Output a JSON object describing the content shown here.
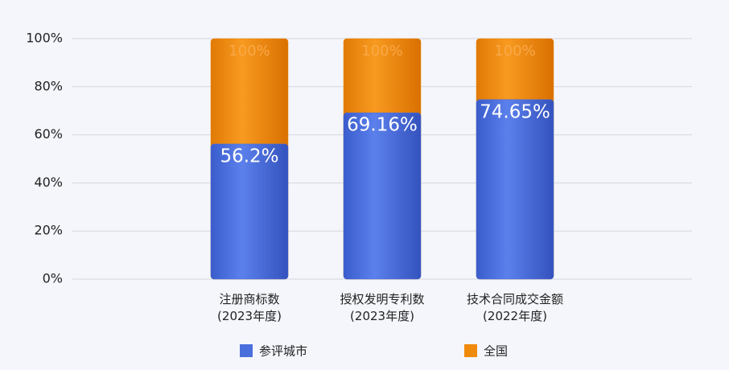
{
  "chart_data": {
    "type": "bar",
    "mode": "overlap",
    "categories": [
      "注册商标数\n(2023年度)",
      "授权发明专利数\n(2023年度)",
      "技术合同成交金额\n(2022年度)"
    ],
    "series": [
      {
        "name": "参评城市",
        "color": "#4a6fdc",
        "values": [
          56.2,
          69.16,
          74.65
        ],
        "value_labels": [
          "56.2%",
          "69.16%",
          "74.65%"
        ]
      },
      {
        "name": "全国",
        "color": "#f08a0c",
        "values": [
          100,
          100,
          100
        ],
        "value_labels": [
          "100%",
          "100%",
          "100%"
        ]
      }
    ],
    "ylim": [
      0,
      100
    ],
    "yticks": [
      {
        "value": 0,
        "label": "0%"
      },
      {
        "value": 20,
        "label": "20%"
      },
      {
        "value": 40,
        "label": "40%"
      },
      {
        "value": 60,
        "label": "60%"
      },
      {
        "value": 80,
        "label": "80%"
      },
      {
        "value": 100,
        "label": "100%"
      }
    ],
    "grid": true
  }
}
